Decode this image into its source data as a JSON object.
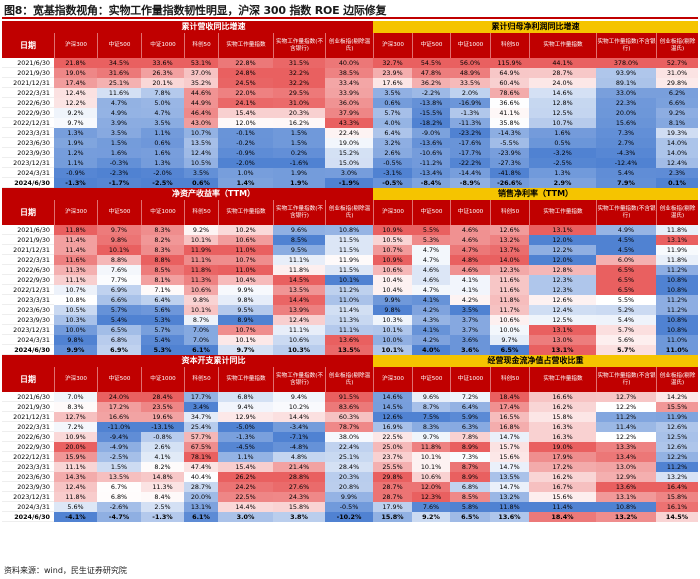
{
  "title": "图8：宽基指数视角：实物工作量指数韧性明显，沪深 300 指数 ROE 边际修复",
  "source": "资料来源：wind，民生证券研究院",
  "date_header": "日期",
  "left_columns": [
    "沪深300",
    "中证500",
    "中证1000",
    "科创50",
    "实物工作量指数",
    "实物工作量指数(不含银行)",
    "创业板指(剔除温氏)"
  ],
  "right_columns": [
    "沪深300",
    "中证500",
    "中证1000",
    "科创50",
    "实物工作量指数",
    "实物工作量指数(不含银行)",
    "创业板指(剔除温氏)"
  ],
  "dates": [
    "2021/6/30",
    "2021/9/30",
    "2021/12/31",
    "2022/3/31",
    "2022/6/30",
    "2022/9/30",
    "2022/12/31",
    "2023/3/31",
    "2023/6/30",
    "2023/9/30",
    "2023/12/31",
    "2024/3/31",
    "2024/6/30"
  ],
  "blocks": [
    {
      "left_title": "累计营收同比增速",
      "right_title": "累计归母净利润同比增速",
      "left_rows": [
        [
          "21.8%",
          "34.5%",
          "33.6%",
          "53.1%",
          "22.8%",
          "31.5%",
          "40.0%"
        ],
        [
          "19.0%",
          "31.6%",
          "26.3%",
          "37.0%",
          "24.8%",
          "32.2%",
          "38.5%"
        ],
        [
          "17.4%",
          "25.1%",
          "20.1%",
          "35.2%",
          "24.5%",
          "32.2%",
          "33.4%"
        ],
        [
          "12.4%",
          "11.6%",
          "7.8%",
          "44.6%",
          "22.0%",
          "29.5%",
          "33.9%"
        ],
        [
          "12.2%",
          "4.7%",
          "5.0%",
          "44.9%",
          "24.1%",
          "31.0%",
          "36.0%"
        ],
        [
          "9.2%",
          "4.9%",
          "4.7%",
          "46.4%",
          "15.4%",
          "20.3%",
          "37.9%"
        ],
        [
          "9.7%",
          "3.9%",
          "3.5%",
          "43.0%",
          "12.0%",
          "16.2%",
          "43.3%"
        ],
        [
          "1.3%",
          "3.5%",
          "1.1%",
          "10.7%",
          "-0.1%",
          "1.5%",
          "22.4%"
        ],
        [
          "1.9%",
          "1.5%",
          "0.6%",
          "13.5%",
          "-0.2%",
          "1.5%",
          "19.0%"
        ],
        [
          "1.2%",
          "1.6%",
          "1.6%",
          "12.4%",
          "-0.9%",
          "0.2%",
          "15.2%"
        ],
        [
          "1.1%",
          "-0.3%",
          "1.3%",
          "10.5%",
          "-2.0%",
          "-1.6%",
          "15.0%"
        ],
        [
          "-0.9%",
          "-2.3%",
          "-2.0%",
          "3.5%",
          "1.0%",
          "1.9%",
          "3.0%"
        ],
        [
          "-1.3%",
          "-1.7%",
          "-2.5%",
          "0.6%",
          "1.4%",
          "1.9%",
          "-1.9%"
        ]
      ],
      "right_rows": [
        [
          "32.7%",
          "54.5%",
          "56.0%",
          "115.9%",
          "44.1%",
          "378.0%",
          "52.7%"
        ],
        [
          "23.9%",
          "47.8%",
          "48.9%",
          "64.9%",
          "28.7%",
          "93.9%",
          "31.0%"
        ],
        [
          "17.6%",
          "36.2%",
          "33.5%",
          "60.4%",
          "24.0%",
          "89.1%",
          "29.8%"
        ],
        [
          "3.5%",
          "-2.2%",
          "2.0%",
          "78.6%",
          "14.6%",
          "33.0%",
          "6.2%"
        ],
        [
          "0.6%",
          "-13.8%",
          "-16.9%",
          "36.6%",
          "12.8%",
          "22.3%",
          "6.6%"
        ],
        [
          "5.7%",
          "-15.5%",
          "-1.3%",
          "41.1%",
          "12.5%",
          "20.0%",
          "9.2%"
        ],
        [
          "4.0%",
          "-18.2%",
          "-11.3%",
          "35.8%",
          "10.7%",
          "15.6%",
          "8.1%"
        ],
        [
          "6.4%",
          "-9.0%",
          "-23.2%",
          "-14.3%",
          "1.6%",
          "7.3%",
          "19.3%"
        ],
        [
          "3.2%",
          "-13.6%",
          "-17.6%",
          "-5.5%",
          "0.5%",
          "2.7%",
          "14.0%"
        ],
        [
          "2.6%",
          "-10.6%",
          "-17.7%",
          "-23.9%",
          "-3.2%",
          "-4.3%",
          "14.0%"
        ],
        [
          "-0.5%",
          "-11.2%",
          "-22.2%",
          "-27.3%",
          "-2.5%",
          "-12.4%",
          "12.4%"
        ],
        [
          "-3.1%",
          "-13.4%",
          "-14.4%",
          "-41.8%",
          "1.3%",
          "5.4%",
          "2.3%"
        ],
        [
          "-0.5%",
          "-8.4%",
          "-8.9%",
          "-26.6%",
          "2.9%",
          "7.9%",
          "0.1%"
        ]
      ]
    },
    {
      "left_title": "净资产收益率（TTM）",
      "right_title": "销售净利率（TTM）",
      "left_rows": [
        [
          "11.8%",
          "9.7%",
          "8.3%",
          "9.2%",
          "10.2%",
          "9.6%",
          "10.8%"
        ],
        [
          "11.4%",
          "9.8%",
          "8.2%",
          "10.1%",
          "10.6%",
          "8.5%",
          "11.5%"
        ],
        [
          "11.4%",
          "10.1%",
          "8.3%",
          "11.9%",
          "11.0%",
          "9.5%",
          "11.5%"
        ],
        [
          "11.6%",
          "8.8%",
          "8.8%",
          "11.1%",
          "10.7%",
          "11.1%",
          "11.9%"
        ],
        [
          "11.3%",
          "7.6%",
          "8.5%",
          "11.8%",
          "11.0%",
          "11.8%",
          "11.5%"
        ],
        [
          "11.1%",
          "7.7%",
          "8.1%",
          "11.3%",
          "10.4%",
          "14.5%",
          "10.1%"
        ],
        [
          "10.7%",
          "6.9%",
          "7.1%",
          "10.6%",
          "9.9%",
          "13.5%",
          "11.2%"
        ],
        [
          "10.8%",
          "6.6%",
          "6.4%",
          "9.8%",
          "9.8%",
          "14.4%",
          "11.0%"
        ],
        [
          "10.5%",
          "5.7%",
          "5.6%",
          "10.1%",
          "9.5%",
          "13.9%",
          "11.4%"
        ],
        [
          "10.3%",
          "5.4%",
          "5.3%",
          "8.7%",
          "8.9%",
          "12.4%",
          "11.3%"
        ],
        [
          "10.0%",
          "6.5%",
          "5.7%",
          "7.0%",
          "10.7%",
          "11.1%",
          "11.1%"
        ],
        [
          "9.8%",
          "6.8%",
          "5.4%",
          "7.0%",
          "10.1%",
          "10.6%",
          "13.6%"
        ],
        [
          "9.9%",
          "6.9%",
          "5.3%",
          "6.1%",
          "9.7%",
          "10.3%",
          "13.5%"
        ]
      ],
      "right_rows": [
        [
          "10.9%",
          "5.5%",
          "4.6%",
          "12.6%",
          "13.1%",
          "4.9%",
          "11.8%"
        ],
        [
          "10.5%",
          "5.3%",
          "4.6%",
          "13.2%",
          "12.0%",
          "4.5%",
          "13.1%"
        ],
        [
          "10.7%",
          "4.7%",
          "4.7%",
          "13.7%",
          "12.2%",
          "4.5%",
          "11.9%"
        ],
        [
          "10.9%",
          "4.7%",
          "4.8%",
          "14.0%",
          "12.0%",
          "6.0%",
          "11.8%"
        ],
        [
          "10.6%",
          "4.6%",
          "4.6%",
          "12.3%",
          "12.8%",
          "6.5%",
          "11.2%"
        ],
        [
          "10.4%",
          "4.6%",
          "4.1%",
          "11.6%",
          "12.3%",
          "6.5%",
          "10.8%"
        ],
        [
          "10.4%",
          "4.7%",
          "4.1%",
          "11.6%",
          "12.3%",
          "6.5%",
          "10.8%"
        ],
        [
          "9.9%",
          "4.1%",
          "4.2%",
          "11.8%",
          "12.6%",
          "5.5%",
          "11.2%"
        ],
        [
          "9.8%",
          "4.2%",
          "3.5%",
          "11.7%",
          "12.4%",
          "5.2%",
          "11.2%"
        ],
        [
          "10.3%",
          "4.3%",
          "3.7%",
          "10.6%",
          "12.5%",
          "5.4%",
          "10.8%"
        ],
        [
          "10.1%",
          "4.1%",
          "3.7%",
          "10.0%",
          "13.1%",
          "5.7%",
          "10.8%"
        ],
        [
          "10.0%",
          "4.2%",
          "3.6%",
          "9.7%",
          "13.0%",
          "5.6%",
          "11.0%"
        ],
        [
          "10.1%",
          "4.0%",
          "3.6%",
          "6.5%",
          "13.1%",
          "5.7%",
          "11.0%"
        ]
      ]
    },
    {
      "left_title": "资本开支累计同比",
      "right_title": "经营现金流净值占营收比重",
      "left_rows": [
        [
          "7.0%",
          "24.0%",
          "28.4%",
          "17.7%",
          "6.8%",
          "9.4%",
          "91.5%"
        ],
        [
          "8.3%",
          "17.2%",
          "23.5%",
          "3.4%",
          "9.4%",
          "10.2%",
          "83.6%"
        ],
        [
          "12.7%",
          "16.6%",
          "19.6%",
          "34.7%",
          "12.9%",
          "14.4%",
          "60.3%"
        ],
        [
          "7.2%",
          "-11.0%",
          "-13.1%",
          "25.4%",
          "-5.0%",
          "-3.4%",
          "78.7%"
        ],
        [
          "10.9%",
          "-9.4%",
          "-0.8%",
          "57.7%",
          "-1.3%",
          "-7.1%",
          "38.0%"
        ],
        [
          "20.0%",
          "-4.9%",
          "2.6%",
          "67.5%",
          "-4.5%",
          "-4.8%",
          "22.4%"
        ],
        [
          "15.9%",
          "-2.5%",
          "4.1%",
          "78.1%",
          "1.1%",
          "4.8%",
          "25.1%"
        ],
        [
          "11.1%",
          "1.5%",
          "8.2%",
          "47.4%",
          "15.4%",
          "21.4%",
          "28.4%"
        ],
        [
          "14.3%",
          "13.5%",
          "14.8%",
          "40.4%",
          "26.2%",
          "28.8%",
          "20.3%"
        ],
        [
          "12.4%",
          "6.7%",
          "11.3%",
          "28.7%",
          "24.2%",
          "27.6%",
          "20.8%"
        ],
        [
          "11.8%",
          "6.8%",
          "8.4%",
          "20.0%",
          "22.5%",
          "24.3%",
          "9.9%"
        ],
        [
          "5.6%",
          "-2.6%",
          "2.5%",
          "13.1%",
          "14.4%",
          "15.8%",
          "-0.5%"
        ],
        [
          "-4.1%",
          "-4.7%",
          "-1.3%",
          "6.1%",
          "3.0%",
          "3.8%",
          "-10.2%"
        ]
      ],
      "right_rows": [
        [
          "14.6%",
          "9.6%",
          "7.2%",
          "18.4%",
          "16.6%",
          "12.7%",
          "14.2%"
        ],
        [
          "14.5%",
          "8.7%",
          "6.4%",
          "17.4%",
          "16.2%",
          "12.2%",
          "15.5%"
        ],
        [
          "12.6%",
          "7.5%",
          "5.9%",
          "16.5%",
          "15.8%",
          "11.2%",
          "11.9%"
        ],
        [
          "16.9%",
          "8.3%",
          "6.3%",
          "16.8%",
          "16.3%",
          "11.4%",
          "12.6%"
        ],
        [
          "22.5%",
          "9.7%",
          "7.8%",
          "14.7%",
          "16.3%",
          "12.2%",
          "12.5%"
        ],
        [
          "25.0%",
          "11.8%",
          "8.9%",
          "15.7%",
          "19.0%",
          "13.3%",
          "12.6%"
        ],
        [
          "23.7%",
          "10.1%",
          "7.3%",
          "15.6%",
          "17.9%",
          "13.4%",
          "12.2%"
        ],
        [
          "25.5%",
          "10.1%",
          "8.7%",
          "14.7%",
          "17.2%",
          "13.0%",
          "11.2%"
        ],
        [
          "29.8%",
          "10.6%",
          "8.9%",
          "13.5%",
          "16.2%",
          "12.9%",
          "13.2%"
        ],
        [
          "28.7%",
          "12.0%",
          "6.8%",
          "14.7%",
          "16.7%",
          "13.6%",
          "16.4%"
        ],
        [
          "28.7%",
          "12.3%",
          "8.5%",
          "13.2%",
          "15.6%",
          "13.1%",
          "15.8%"
        ],
        [
          "17.9%",
          "7.6%",
          "5.8%",
          "11.8%",
          "11.4%",
          "10.8%",
          "16.1%"
        ],
        [
          "15.8%",
          "9.2%",
          "6.5%",
          "13.6%",
          "18.4%",
          "13.2%",
          "14.5%"
        ]
      ]
    }
  ]
}
